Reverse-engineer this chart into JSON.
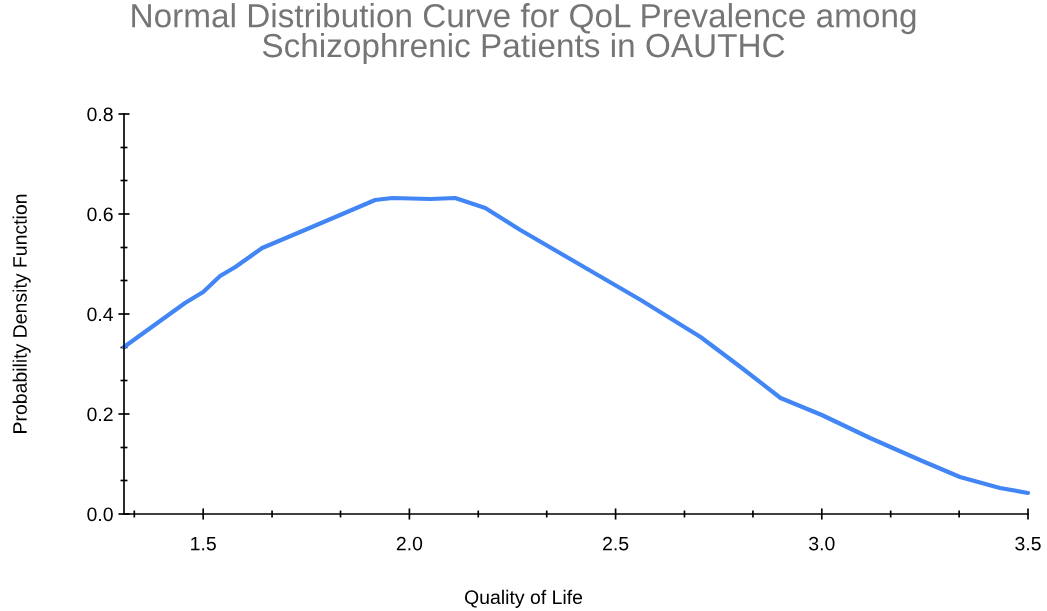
{
  "chart_data": {
    "type": "line",
    "title": "Normal Distribution Curve for QoL Prevalence among\nSchizophrenic Patients in OAUTHC",
    "xlabel": "Quality of Life",
    "ylabel": "Probability Density Function",
    "x": [
      1.308,
      1.456,
      1.5,
      1.541,
      1.578,
      1.643,
      1.735,
      1.832,
      1.917,
      1.959,
      2.051,
      2.111,
      2.184,
      2.269,
      2.415,
      2.561,
      2.706,
      2.803,
      2.9,
      3.0,
      3.117,
      3.238,
      3.335,
      3.432,
      3.5
    ],
    "series": [
      {
        "color": "#4285f4",
        "values": [
          0.334,
          0.422,
          0.444,
          0.476,
          0.494,
          0.532,
          0.564,
          0.598,
          0.628,
          0.632,
          0.63,
          0.632,
          0.612,
          0.568,
          0.498,
          0.428,
          0.354,
          0.294,
          0.232,
          0.198,
          0.152,
          0.108,
          0.074,
          0.052,
          0.042
        ]
      }
    ],
    "xlim": [
      1.308,
      3.5
    ],
    "xticks": [
      {
        "value": 1.333,
        "label": null
      },
      {
        "value": 1.5,
        "label": "1.5"
      },
      {
        "value": 1.667,
        "label": null
      },
      {
        "value": 1.833,
        "label": null
      },
      {
        "value": 2.0,
        "label": "2.0"
      },
      {
        "value": 2.167,
        "label": null
      },
      {
        "value": 2.333,
        "label": null
      },
      {
        "value": 2.5,
        "label": "2.5"
      },
      {
        "value": 2.667,
        "label": null
      },
      {
        "value": 2.833,
        "label": null
      },
      {
        "value": 3.0,
        "label": "3.0"
      },
      {
        "value": 3.167,
        "label": null
      },
      {
        "value": 3.333,
        "label": null
      },
      {
        "value": 3.5,
        "label": "3.5"
      }
    ],
    "ylim": [
      0,
      0.8
    ],
    "yticks": [
      {
        "value": 0,
        "label": "0.0"
      },
      {
        "value": 0.067,
        "label": null
      },
      {
        "value": 0.133,
        "label": null
      },
      {
        "value": 0.2,
        "label": "0.2"
      },
      {
        "value": 0.267,
        "label": null
      },
      {
        "value": 0.333,
        "label": null
      },
      {
        "value": 0.4,
        "label": "0.4"
      },
      {
        "value": 0.467,
        "label": null
      },
      {
        "value": 0.533,
        "label": null
      },
      {
        "value": 0.6,
        "label": "0.6"
      },
      {
        "value": 0.667,
        "label": null
      },
      {
        "value": 0.733,
        "label": null
      },
      {
        "value": 0.8,
        "label": "0.8"
      }
    ],
    "grid": false,
    "legend": false,
    "marker": "none",
    "line_style": "solid"
  }
}
